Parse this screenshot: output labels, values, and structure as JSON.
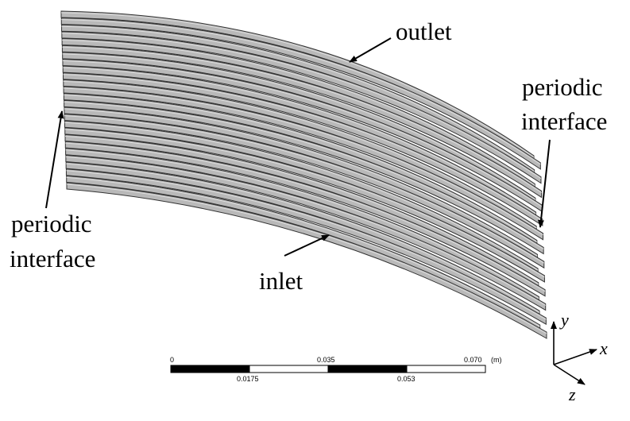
{
  "labels": {
    "outlet": "outlet",
    "inlet": "inlet",
    "periodic_left_line1": "periodic",
    "periodic_left_line2": "interface",
    "periodic_right_line1": "periodic",
    "periodic_right_line2": "interface"
  },
  "scale_bar": {
    "top_ticks": [
      "0",
      "0.035",
      "0.070"
    ],
    "unit": "(m)",
    "bottom_ticks": [
      "0.0175",
      "0.053"
    ]
  },
  "axes": {
    "x": "x",
    "y": "y",
    "z": "z"
  },
  "colors": {
    "plate_fill": "#b9b9b9",
    "plate_edge": "#333333",
    "plate_highlight": "#dcdcdc",
    "scale_dark": "#000000",
    "scale_light": "#ffffff"
  },
  "geometry_model": {
    "plate_count": 26
  }
}
